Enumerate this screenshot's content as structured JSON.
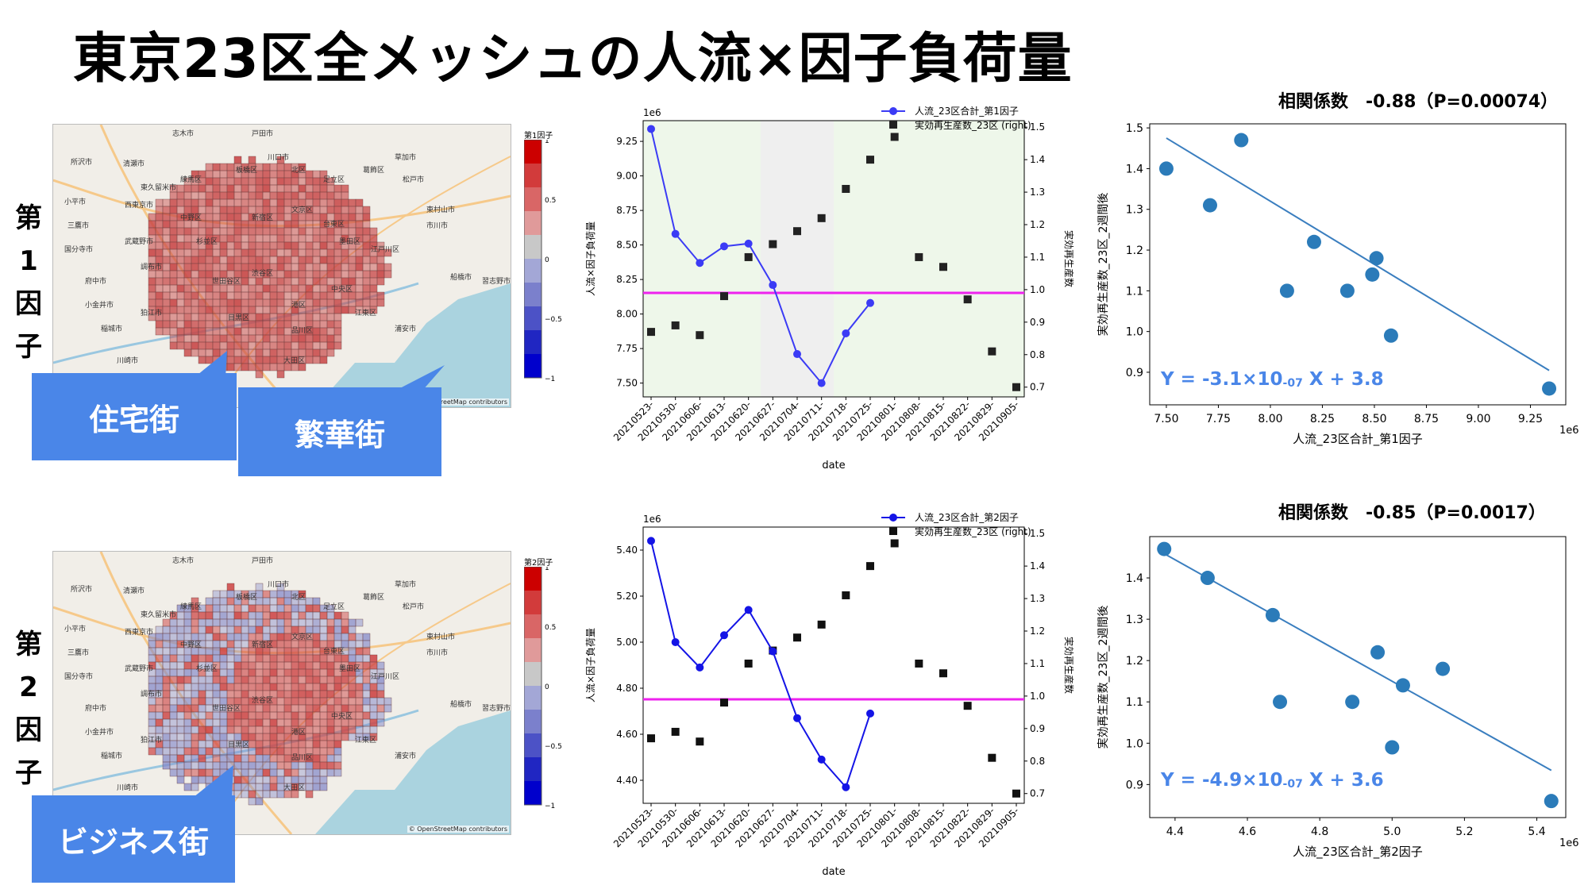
{
  "title": "東京23区全メッシュの人流×因子負荷量",
  "rows": [
    {
      "label_chars": [
        "第",
        "1",
        "因",
        "子"
      ],
      "map": {
        "colorbar_title": "第1因子",
        "colorbar_ticks": [
          "1",
          "0.5",
          "0",
          "−0.5",
          "−1"
        ],
        "osm_credit": "© OpenStreetMap contributors",
        "callouts": [
          "住宅街",
          "繁華街"
        ],
        "place_labels": [
          "志木市",
          "戸田市",
          "川口市",
          "草加市",
          "所沢市",
          "清瀬市",
          "東久留米市",
          "練馬区",
          "板橋区",
          "北区",
          "足立区",
          "葛飾区",
          "松戸市",
          "小平市",
          "西東京市",
          "三鷹市",
          "武蔵野市",
          "中野区",
          "杉並区",
          "新宿区",
          "文京区",
          "台東区",
          "墨田区",
          "江戸川区",
          "市川市",
          "国分寺市",
          "調布市",
          "世田谷区",
          "渋谷区",
          "港区",
          "中央区",
          "江東区",
          "浦安市",
          "船橋市",
          "府中市",
          "狛江市",
          "目黒区",
          "品川区",
          "大田区",
          "稲城市",
          "川崎市",
          "習志野市",
          "東村山市",
          "小金井市"
        ]
      },
      "time_chart": {
        "legend": [
          "人流_23区合計_第1因子",
          "実効再生産数_23区 (right)"
        ],
        "ylabel": "人流×因子負荷量",
        "y2label": "実効再生産数",
        "xlabel": "date",
        "y_offset": "1e6"
      },
      "scatter": {
        "corr_title": "相関係数　-0.88（P=0.00074）",
        "xlabel": "人流_23区合計_第1因子",
        "ylabel": "実効再生産数_23区_2週間後",
        "x_offset": "1e6",
        "eq_prefix": "Y = -3.1×10",
        "eq_exp": "-07",
        "eq_suffix": " X + 3.8"
      }
    },
    {
      "label_chars": [
        "第",
        "2",
        "因",
        "子"
      ],
      "map": {
        "colorbar_title": "第2因子",
        "colorbar_ticks": [
          "1",
          "0.5",
          "0",
          "−0.5",
          "−1"
        ],
        "osm_credit": "© OpenStreetMap contributors",
        "callouts": [
          "ビジネス街"
        ],
        "place_labels": [
          "志木市",
          "戸田市",
          "川口市",
          "草加市",
          "所沢市",
          "清瀬市",
          "東久留米市",
          "練馬区",
          "板橋区",
          "北区",
          "足立区",
          "葛飾区",
          "松戸市",
          "小平市",
          "西東京市",
          "三鷹市",
          "武蔵野市",
          "中野区",
          "杉並区",
          "新宿区",
          "文京区",
          "台東区",
          "墨田区",
          "江戸川区",
          "市川市",
          "国分寺市",
          "調布市",
          "世田谷区",
          "渋谷区",
          "港区",
          "中央区",
          "江東区",
          "浦安市",
          "船橋市",
          "府中市",
          "狛江市",
          "目黒区",
          "品川区",
          "大田区",
          "稲城市",
          "川崎市",
          "習志野市",
          "東村山市",
          "小金井市"
        ]
      },
      "time_chart": {
        "legend": [
          "人流_23区合計_第2因子",
          "実効再生産数_23区 (right)"
        ],
        "ylabel": "人流×因子負荷量",
        "y2label": "実効再生産数",
        "xlabel": "date",
        "y_offset": "1e6"
      },
      "scatter": {
        "corr_title": "相関係数　-0.85（P=0.0017）",
        "xlabel": "人流_23区合計_第2因子",
        "ylabel": "実効再生産数_23区_2週間後",
        "x_offset": "1e6",
        "eq_prefix": "Y = -4.9×10",
        "eq_exp": "-07",
        "eq_suffix": " X + 3.6"
      }
    }
  ],
  "chart_data": [
    {
      "type": "line",
      "title": "",
      "xlabel": "date",
      "ylabel": "人流×因子負荷量",
      "y2label": "実効再生産数",
      "categories": [
        "20210523-",
        "20210530-",
        "20210606-",
        "20210613-",
        "20210620-",
        "20210627-",
        "20210704-",
        "20210711-",
        "20210718-",
        "20210725-",
        "20210801-",
        "20210808-",
        "20210815-",
        "20210822-",
        "20210829-",
        "20210905-"
      ],
      "ylim": [
        7.4,
        9.4
      ],
      "y2lim": [
        0.67,
        1.52
      ],
      "yticks": [
        7.5,
        7.75,
        8.0,
        8.25,
        8.5,
        8.75,
        9.0,
        9.25
      ],
      "y2ticks": [
        0.7,
        0.8,
        0.9,
        1.0,
        1.1,
        1.2,
        1.3,
        1.4,
        1.5
      ],
      "hline_y2": 0.99,
      "shaded_spans": [
        {
          "from": 0,
          "to": 4.5,
          "color": "#eef7ea"
        },
        {
          "from": 4.5,
          "to": 7.5,
          "color": "#efefef"
        },
        {
          "from": 7.5,
          "to": 15.5,
          "color": "#eef7ea"
        }
      ],
      "series": [
        {
          "name": "人流_23区合計_第1因子",
          "axis": "left",
          "color": "#3b3bf5",
          "values": [
            9.34,
            8.58,
            8.37,
            8.49,
            8.51,
            8.21,
            7.71,
            7.5,
            7.86,
            8.08,
            null,
            null,
            null,
            null,
            null,
            null
          ]
        },
        {
          "name": "実効再生産数_23区 (right)",
          "axis": "right",
          "color": "#222222",
          "values": [
            0.87,
            0.89,
            0.86,
            0.98,
            1.1,
            1.14,
            1.18,
            1.22,
            1.31,
            1.4,
            1.47,
            1.1,
            1.07,
            0.97,
            0.81,
            0.7
          ]
        }
      ]
    },
    {
      "type": "scatter",
      "title": "相関係数　-0.88（P=0.00074）",
      "xlabel": "人流_23区合計_第1因子",
      "ylabel": "実効再生産数_23区_2週間後",
      "xlim": [
        7.42,
        9.42
      ],
      "ylim": [
        0.82,
        1.51
      ],
      "xticks": [
        7.5,
        7.75,
        8.0,
        8.25,
        8.5,
        8.75,
        9.0,
        9.25
      ],
      "yticks": [
        0.9,
        1.0,
        1.1,
        1.2,
        1.3,
        1.4,
        1.5
      ],
      "points": [
        [
          7.5,
          1.4
        ],
        [
          7.71,
          1.31
        ],
        [
          7.86,
          1.47
        ],
        [
          8.08,
          1.1
        ],
        [
          8.21,
          1.22
        ],
        [
          8.37,
          1.1
        ],
        [
          8.49,
          1.14
        ],
        [
          8.51,
          1.18
        ],
        [
          8.58,
          0.99
        ],
        [
          9.34,
          0.86
        ]
      ],
      "fit": {
        "slope": -0.31,
        "intercept": 3.8,
        "x_range": [
          7.5,
          9.34
        ],
        "color": "#3a7ebf"
      },
      "point_color": "#2b7bb9"
    },
    {
      "type": "line",
      "title": "",
      "xlabel": "date",
      "ylabel": "人流×因子負荷量",
      "y2label": "実効再生産数",
      "categories": [
        "20210523-",
        "20210530-",
        "20210606-",
        "20210613-",
        "20210620-",
        "20210627-",
        "20210704-",
        "20210711-",
        "20210718-",
        "20210725-",
        "20210801-",
        "20210808-",
        "20210815-",
        "20210822-",
        "20210829-",
        "20210905-"
      ],
      "ylim": [
        4.3,
        5.5
      ],
      "y2lim": [
        0.67,
        1.52
      ],
      "yticks": [
        4.4,
        4.6,
        4.8,
        5.0,
        5.2,
        5.4
      ],
      "y2ticks": [
        0.7,
        0.8,
        0.9,
        1.0,
        1.1,
        1.2,
        1.3,
        1.4,
        1.5
      ],
      "hline_y2": 0.99,
      "shaded_spans": [],
      "series": [
        {
          "name": "人流_23区合計_第2因子",
          "axis": "left",
          "color": "#1414e6",
          "values": [
            5.44,
            5.0,
            4.89,
            5.03,
            5.14,
            4.96,
            4.67,
            4.49,
            4.37,
            4.69,
            null,
            null,
            null,
            null,
            null,
            null
          ]
        },
        {
          "name": "実効再生産数_23区 (right)",
          "axis": "right",
          "color": "#111111",
          "values": [
            0.87,
            0.89,
            0.86,
            0.98,
            1.1,
            1.14,
            1.18,
            1.22,
            1.31,
            1.4,
            1.47,
            1.1,
            1.07,
            0.97,
            0.81,
            0.7
          ]
        }
      ]
    },
    {
      "type": "scatter",
      "title": "相関係数　-0.85（P=0.0017）",
      "xlabel": "人流_23区合計_第2因子",
      "ylabel": "実効再生産数_23区_2週間後",
      "xlim": [
        4.33,
        5.48
      ],
      "ylim": [
        0.82,
        1.5
      ],
      "xticks": [
        4.4,
        4.6,
        4.8,
        5.0,
        5.2,
        5.4
      ],
      "yticks": [
        0.9,
        1.0,
        1.1,
        1.2,
        1.3,
        1.4
      ],
      "points": [
        [
          4.37,
          1.47
        ],
        [
          4.49,
          1.4
        ],
        [
          4.67,
          1.31
        ],
        [
          4.69,
          1.1
        ],
        [
          4.89,
          1.1
        ],
        [
          4.96,
          1.22
        ],
        [
          5.0,
          0.99
        ],
        [
          5.03,
          1.14
        ],
        [
          5.14,
          1.18
        ],
        [
          5.44,
          0.86
        ]
      ],
      "fit": {
        "slope": -0.49,
        "intercept": 3.6,
        "x_range": [
          4.37,
          5.44
        ],
        "color": "#3a7ebf"
      },
      "point_color": "#2b7bb9"
    }
  ],
  "map_colors": {
    "water": "#aad3df",
    "land": "#f1eee8",
    "grid_red": "#c8504f",
    "grid_blue": "#7f86c6",
    "callout": "#4a86e8"
  }
}
